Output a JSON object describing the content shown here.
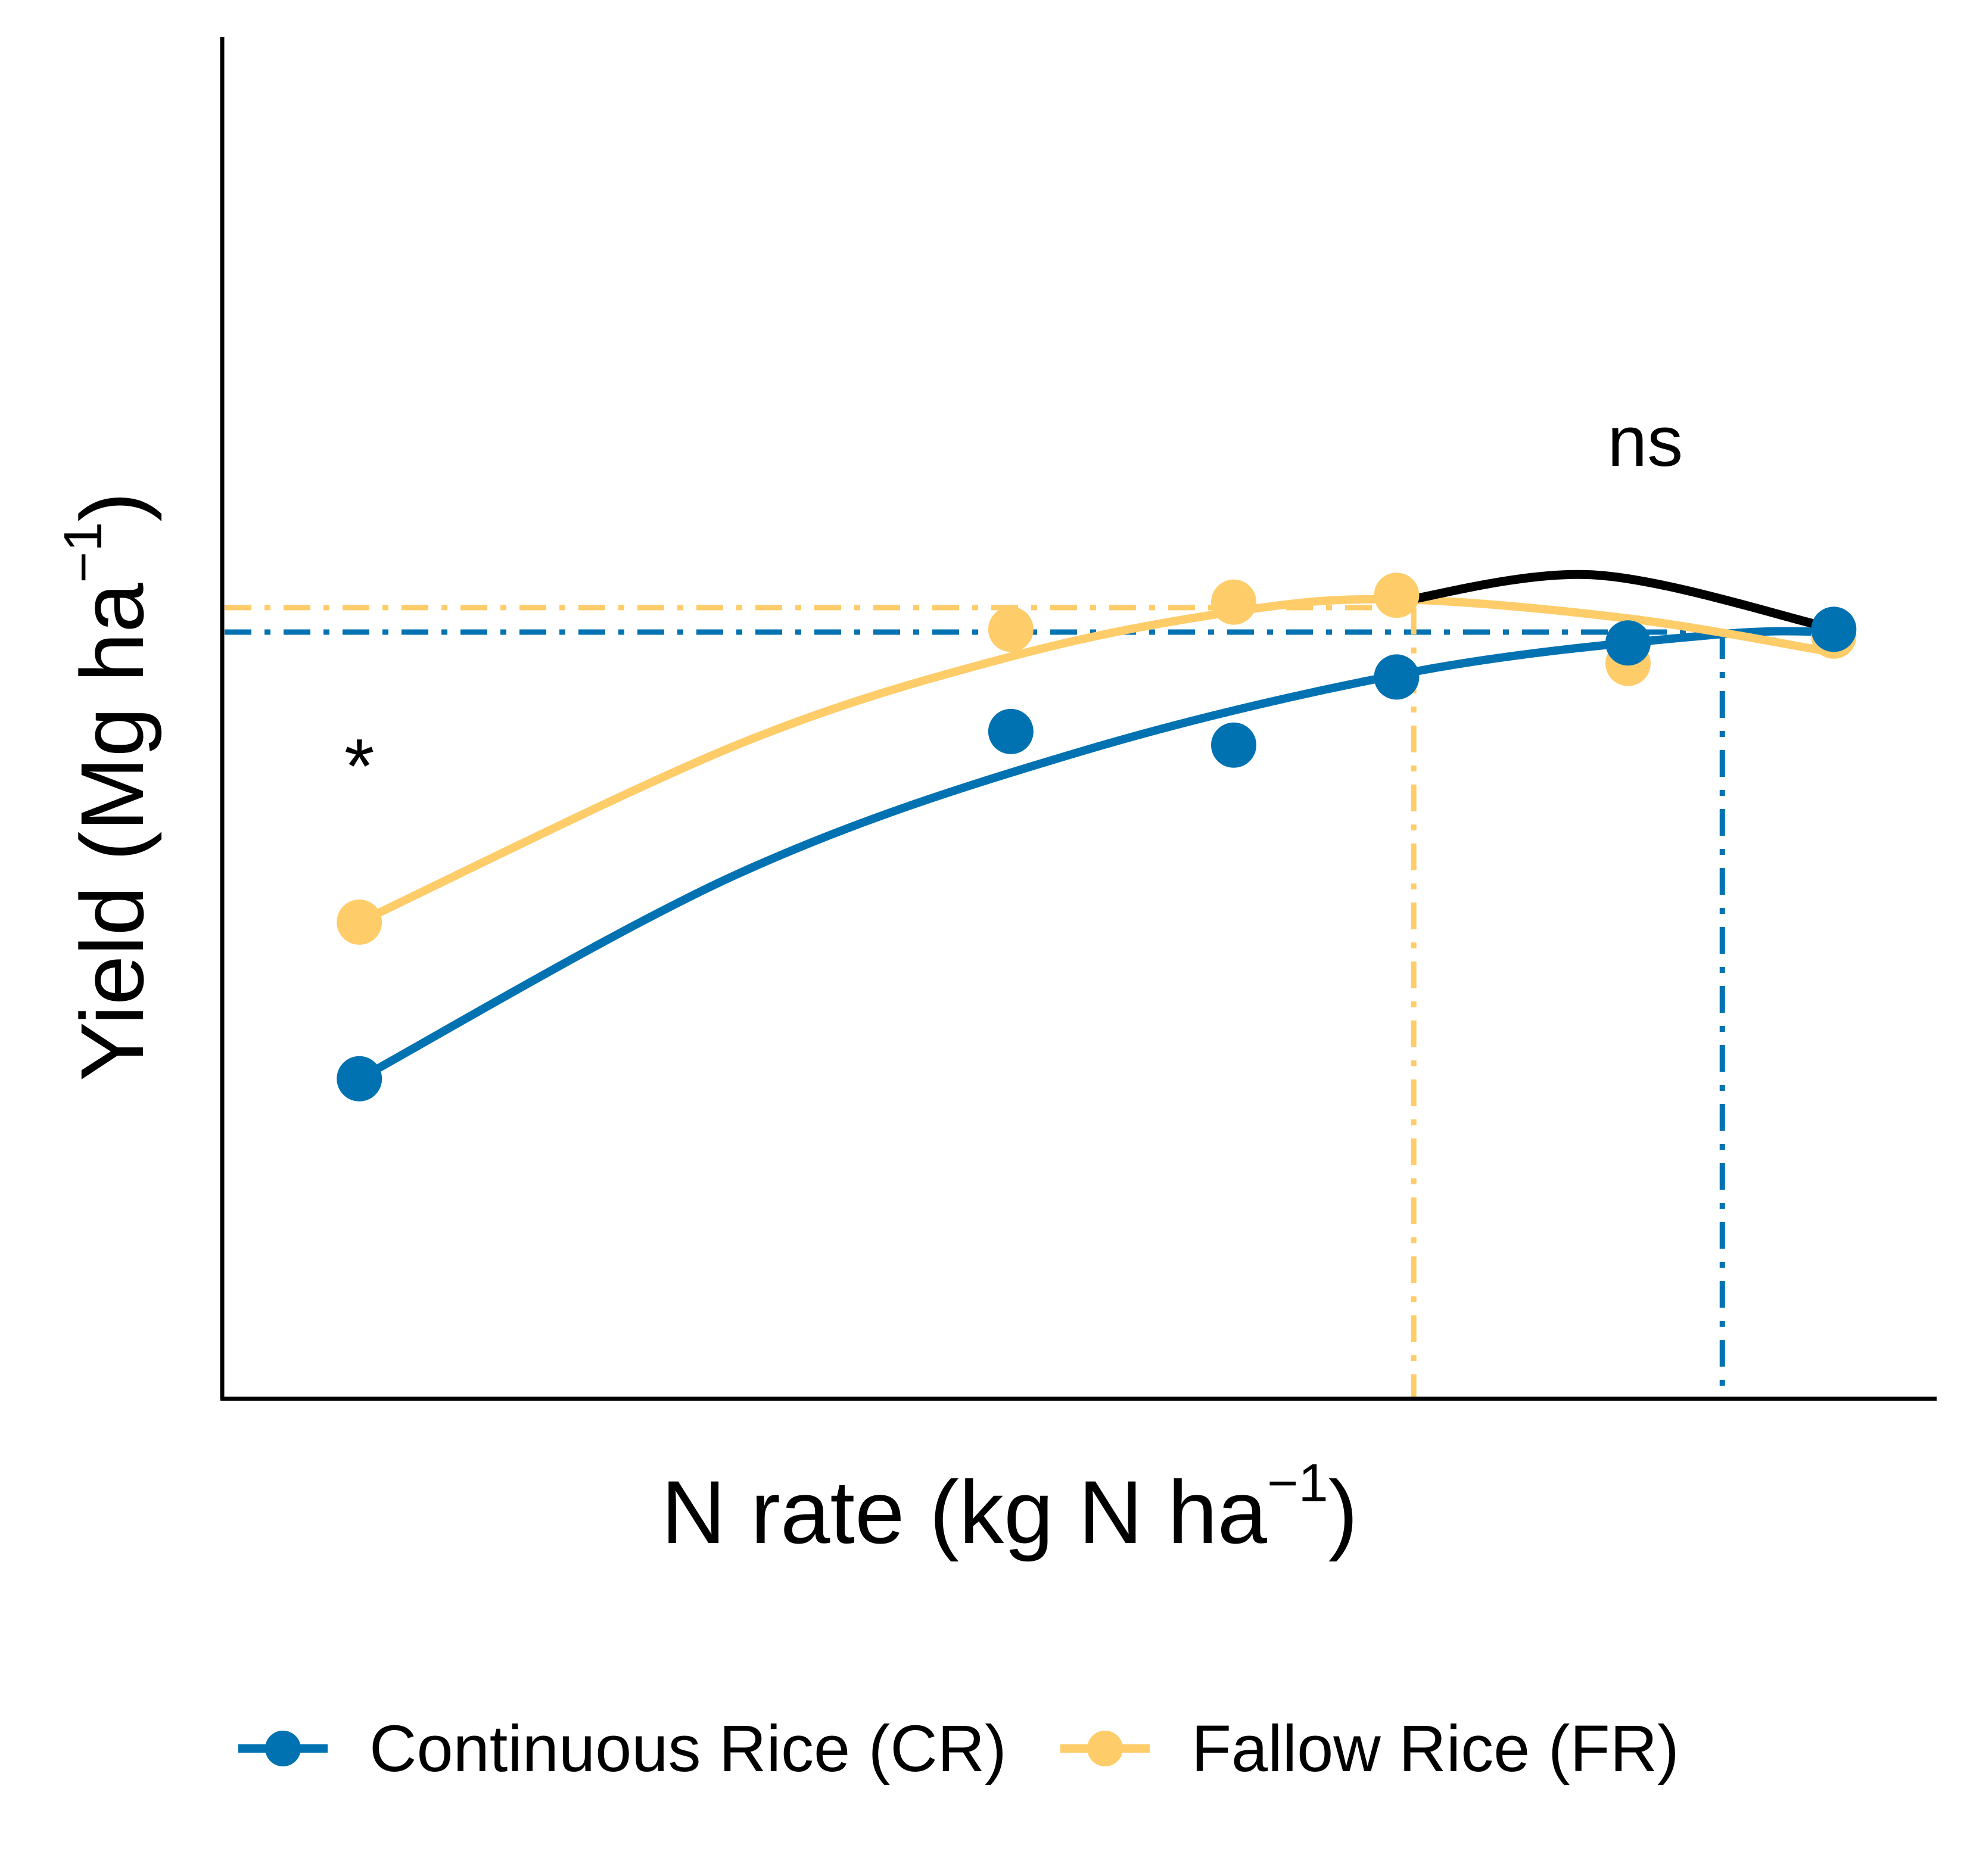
{
  "chart_data": {
    "type": "scatter",
    "xlabel": {
      "main": "N rate (kg N ha",
      "sup": "−1",
      "close": ")"
    },
    "ylabel": {
      "main": "Yield (Mg ha",
      "sup": "−1",
      "close": ")"
    },
    "xlim": [
      0,
      1
    ],
    "ylim": [
      0,
      1
    ],
    "series": [
      {
        "name": "Continuous Rice (CR)",
        "color": "#0072b2",
        "points": [
          [
            0.08,
            0.235
          ],
          [
            0.46,
            0.49
          ],
          [
            0.59,
            0.48
          ],
          [
            0.685,
            0.53
          ],
          [
            0.82,
            0.555
          ],
          [
            0.94,
            0.565
          ]
        ],
        "fit": [
          [
            0.08,
            0.235
          ],
          [
            0.3,
            0.385
          ],
          [
            0.5,
            0.475
          ],
          [
            0.7,
            0.535
          ],
          [
            0.87,
            0.561
          ],
          [
            0.94,
            0.563
          ]
        ],
        "plateau_y": 0.563,
        "optimum_x": 0.875
      },
      {
        "name": "Fallow Rice (FR)",
        "color": "#fecd6a",
        "points": [
          [
            0.08,
            0.35
          ],
          [
            0.46,
            0.565
          ],
          [
            0.59,
            0.585
          ],
          [
            0.685,
            0.59
          ],
          [
            0.82,
            0.54
          ],
          [
            0.94,
            0.56
          ]
        ],
        "fit": [
          [
            0.08,
            0.35
          ],
          [
            0.3,
            0.48
          ],
          [
            0.46,
            0.545
          ],
          [
            0.59,
            0.578
          ],
          [
            0.685,
            0.587
          ],
          [
            0.82,
            0.573
          ],
          [
            0.94,
            0.548
          ]
        ],
        "plateau_y": 0.581,
        "optimum_x": 0.695
      }
    ],
    "bracket": [
      [
        0.685,
        0.585
      ],
      [
        0.8,
        0.605
      ],
      [
        0.935,
        0.567
      ]
    ],
    "annotations": [
      {
        "text": "*",
        "x": 0.08,
        "y": 0.445
      },
      {
        "text": "ns",
        "x": 0.83,
        "y": 0.685
      }
    ],
    "grid": false,
    "legend_position": "bottom"
  }
}
